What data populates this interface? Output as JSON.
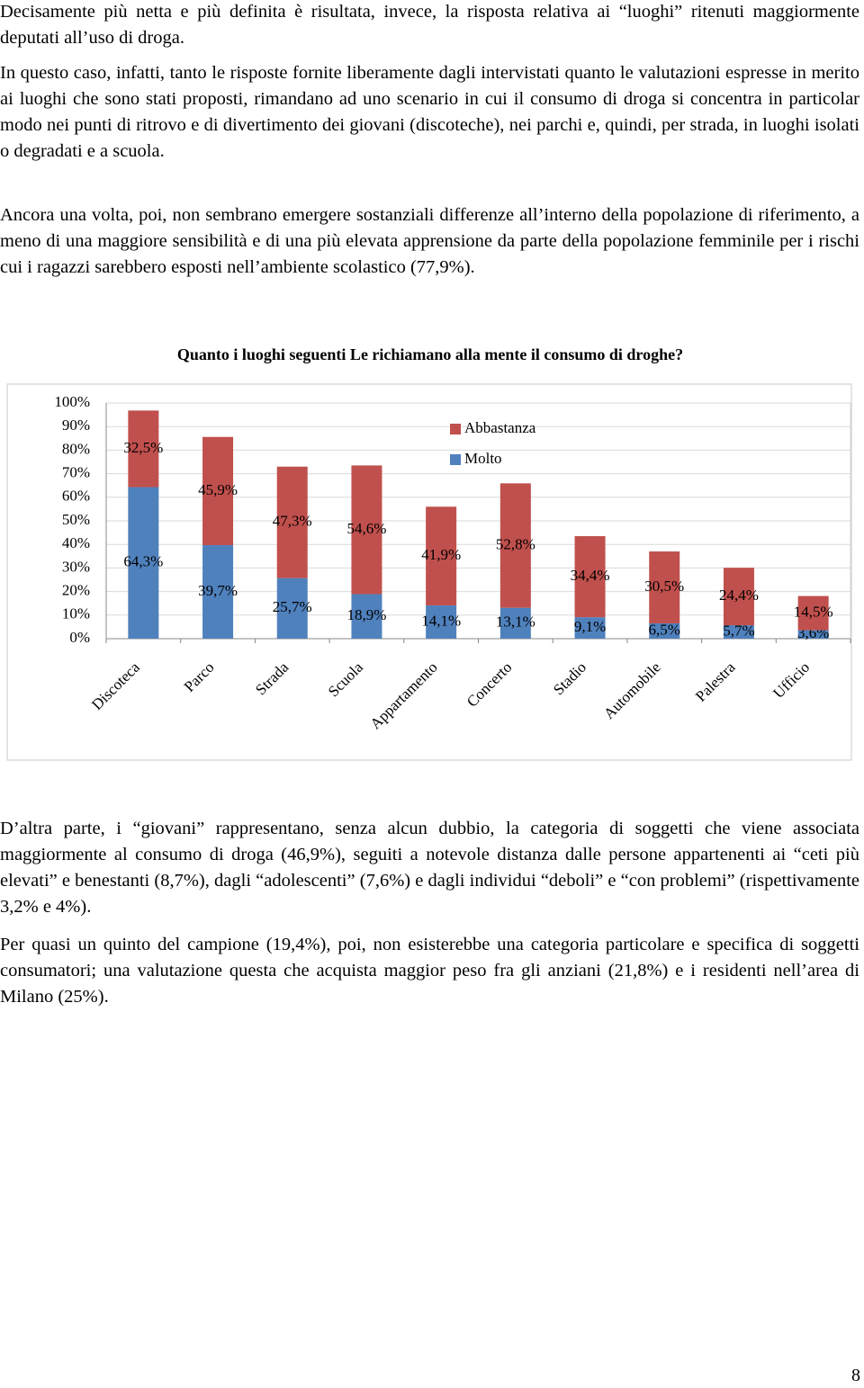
{
  "paragraphs": [
    "Decisamente più netta e più definita è risultata, invece, la risposta relativa ai “luoghi” ritenuti maggiormente deputati all’uso di droga.",
    "In questo caso, infatti, tanto le risposte fornite liberamente dagli intervistati quanto le valutazioni espresse in merito ai luoghi che sono stati proposti, rimandano ad uno scenario in cui il consumo di droga si concentra in particolar modo nei punti di ritrovo e di divertimento dei giovani (discoteche), nei parchi e, quindi, per strada, in luoghi isolati o degradati e a scuola.",
    "Ancora una volta, poi, non sembrano emergere sostanziali differenze all’interno della popolazione di riferimento, a meno di una maggiore sensibilità e di una più elevata apprensione da parte della popolazione femminile per i rischi cui i ragazzi sarebbero esposti nell’ambiente scolastico (77,9%).",
    "D’altra parte, i “giovani” rappresentano, senza alcun dubbio, la categoria di soggetti che viene associata maggiormente al consumo di droga (46,9%), seguiti a notevole distanza dalle persone appartenenti ai “ceti più elevati” e benestanti (8,7%), dagli “adolescenti” (7,6%) e dagli individui “deboli” e “con problemi” (rispettivamente 3,2% e 4%).",
    "Per quasi un quinto del campione (19,4%), poi, non esisterebbe una categoria particolare e specifica di soggetti consumatori; una valutazione questa che acquista maggior peso fra gli anziani (21,8%) e i residenti nell’area di Milano (25%)."
  ],
  "chart_data": {
    "type": "stacked_bar",
    "title": "Quanto i luoghi seguenti Le richiamano alla mente il consumo di droghe?",
    "categories": [
      "Discoteca",
      "Parco",
      "Strada",
      "Scuola",
      "Appartamento",
      "Concerto",
      "Stadio",
      "Automobile",
      "Palestra",
      "Ufficio"
    ],
    "series": [
      {
        "name": "Molto",
        "color": "#4f81bd",
        "values": [
          64.3,
          39.7,
          25.7,
          18.9,
          14.1,
          13.1,
          9.1,
          6.5,
          5.7,
          3.6
        ],
        "value_labels": [
          "64,3%",
          "39,7%",
          "25,7%",
          "18,9%",
          "14,1%",
          "13,1%",
          "9,1%",
          "6,5%",
          "5,7%",
          "3,6%"
        ]
      },
      {
        "name": "Abbastanza",
        "color": "#c0504d",
        "values": [
          32.5,
          45.9,
          47.3,
          54.6,
          41.9,
          52.8,
          34.4,
          30.5,
          24.4,
          14.5
        ],
        "value_labels": [
          "32,5%",
          "45,9%",
          "47,3%",
          "54,6%",
          "41,9%",
          "52,8%",
          "34,4%",
          "30,5%",
          "24,4%",
          "14,5%"
        ]
      }
    ],
    "ylim": [
      0,
      100
    ],
    "yticks": [
      {
        "value": 0,
        "label": "0%"
      },
      {
        "value": 10,
        "label": "10%"
      },
      {
        "value": 20,
        "label": "20%"
      },
      {
        "value": 30,
        "label": "30%"
      },
      {
        "value": 40,
        "label": "40%"
      },
      {
        "value": 50,
        "label": "50%"
      },
      {
        "value": 60,
        "label": "60%"
      },
      {
        "value": 70,
        "label": "70%"
      },
      {
        "value": 80,
        "label": "80%"
      },
      {
        "value": 90,
        "label": "90%"
      },
      {
        "value": 100,
        "label": "100%"
      }
    ],
    "grid": true
  },
  "page_number": "8"
}
